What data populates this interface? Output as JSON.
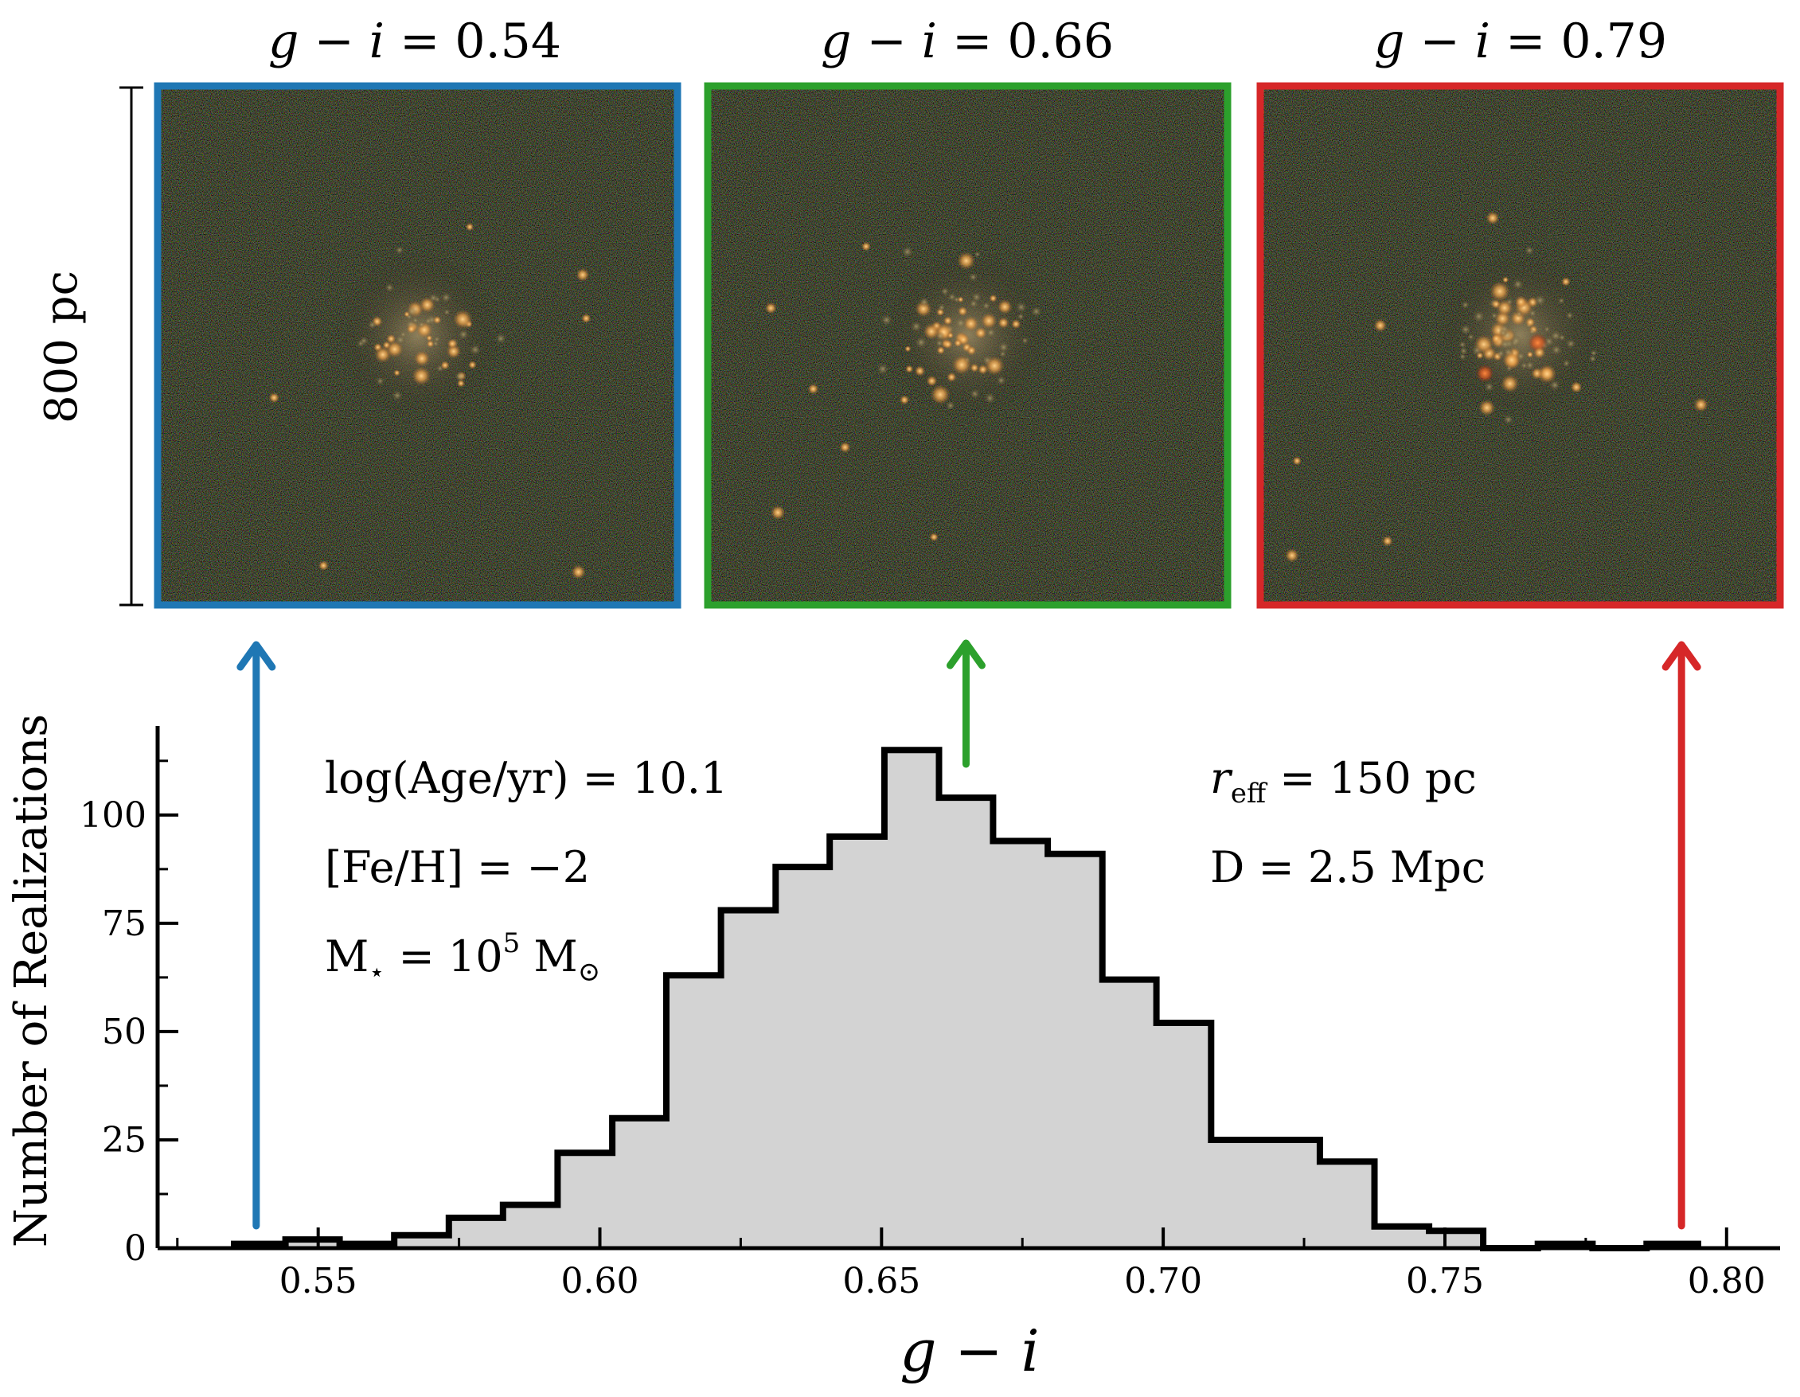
{
  "panels": [
    {
      "title": "g − i = 0.54",
      "title_var": "g − i",
      "title_val": "= 0.54",
      "frame_color": "#1f77b4",
      "seed": 11,
      "n_stars": 55,
      "spread": 0.17
    },
    {
      "title": "g − i = 0.66",
      "title_var": "g − i",
      "title_val": "= 0.66",
      "frame_color": "#2ca02c",
      "seed": 23,
      "n_stars": 70,
      "spread": 0.19
    },
    {
      "title": "g − i = 0.79",
      "title_var": "g − i",
      "title_val": "= 0.79",
      "frame_color": "#d62728",
      "seed": 37,
      "n_stars": 85,
      "spread": 0.18
    }
  ],
  "scale_bar": {
    "label": "800 pc"
  },
  "annotations": {
    "age": "log(Age/yr) = 10.1",
    "feh": "[Fe/H] = −2",
    "mass_prefix": "M",
    "mass_sub": "⋆",
    "mass_mid": " = 10",
    "mass_sup": "5",
    "mass_suffix": " M",
    "mass_sub2": "⊙",
    "reff_var": "r",
    "reff_sub": "eff",
    "reff_val": " = 150 pc",
    "distance": "D = 2.5 Mpc"
  },
  "arrows": [
    {
      "name": "blue-arrow",
      "color": "#1f77b4",
      "x_value": 0.539
    },
    {
      "name": "green-arrow",
      "color": "#2ca02c",
      "x_value": 0.665
    },
    {
      "name": "red-arrow",
      "color": "#d62728",
      "x_value": 0.792
    }
  ],
  "chart_data": {
    "type": "histogram",
    "xlabel": "g − i",
    "ylabel": "Number of Realizations",
    "xlim": [
      0.5215,
      0.8095
    ],
    "ylim": [
      0,
      120
    ],
    "xticks": [
      0.55,
      0.6,
      0.65,
      0.7,
      0.75,
      0.8
    ],
    "xtick_labels": [
      "0.55",
      "0.60",
      "0.65",
      "0.70",
      "0.75",
      "0.80"
    ],
    "yticks": [
      0,
      25,
      50,
      75,
      100
    ],
    "ytick_labels": [
      "0",
      "25",
      "50",
      "75",
      "100"
    ],
    "bin_edges": [
      0.5345,
      0.5442,
      0.5538,
      0.5635,
      0.5732,
      0.5828,
      0.5925,
      0.6022,
      0.6118,
      0.6215,
      0.6312,
      0.6408,
      0.6505,
      0.6602,
      0.6698,
      0.6795,
      0.6892,
      0.6988,
      0.7085,
      0.7182,
      0.7278,
      0.7375,
      0.7472,
      0.7568,
      0.7665,
      0.7762,
      0.7858,
      0.7955
    ],
    "counts": [
      1,
      2,
      1,
      3,
      7,
      10,
      22,
      30,
      63,
      78,
      88,
      95,
      115,
      104,
      94,
      91,
      62,
      52,
      25,
      25,
      20,
      5,
      4,
      0,
      1,
      0,
      1
    ],
    "fill_color": "#d3d3d3",
    "edge_color": "#000000"
  }
}
